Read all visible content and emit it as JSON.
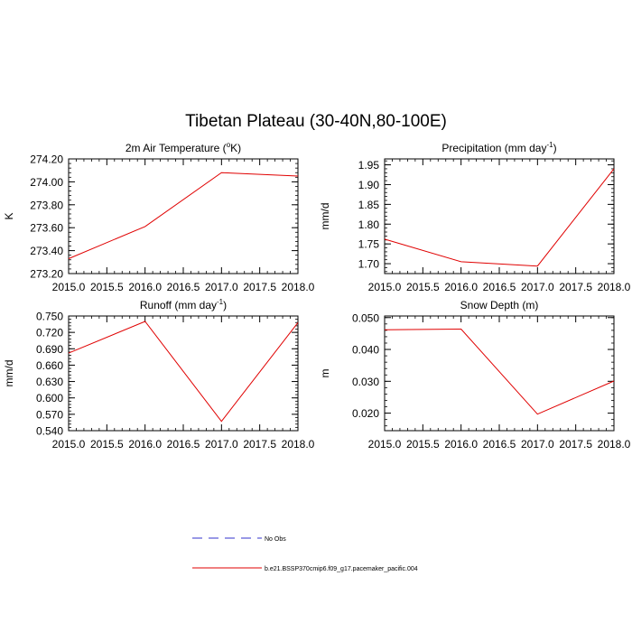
{
  "title": "Tibetan Plateau (30-40N,80-100E)",
  "series_color": "#e00000",
  "obs_color": "#3333cc",
  "legend": {
    "obs_label": "No Obs",
    "model_label": "b.e21.BSSP370cmip6.f09_g17.pacemaker_pacific.004"
  },
  "chart_data": [
    {
      "type": "line",
      "title": "2m Air Temperature (",
      "title_sup": "o",
      "title_tail": "K)",
      "ylabel": "K",
      "x": [
        2015.0,
        2016.0,
        2017.0,
        2018.0
      ],
      "values": [
        273.33,
        273.61,
        274.08,
        274.05
      ],
      "xlim": [
        2015.0,
        2018.0
      ],
      "ylim": [
        273.2,
        274.2
      ],
      "yticks": [
        "274.20",
        "274.00",
        "273.80",
        "273.60",
        "273.40",
        "273.20"
      ],
      "ytick_values": [
        274.2,
        274.0,
        273.8,
        273.6,
        273.4,
        273.2
      ],
      "xticks": [
        "2015.0",
        "2015.5",
        "2016.0",
        "2016.5",
        "2017.0",
        "2017.5",
        "2018.0"
      ]
    },
    {
      "type": "line",
      "title": "Precipitation (mm day",
      "title_sup": "-1",
      "title_tail": ")",
      "ylabel": "mm/d",
      "x": [
        2015.0,
        2016.0,
        2017.0,
        2018.0
      ],
      "values": [
        1.762,
        1.705,
        1.694,
        1.94
      ],
      "xlim": [
        2015.0,
        2018.0
      ],
      "ylim": [
        1.675,
        1.965
      ],
      "yticks": [
        "1.95",
        "1.90",
        "1.85",
        "1.80",
        "1.75",
        "1.70"
      ],
      "ytick_values": [
        1.95,
        1.9,
        1.85,
        1.8,
        1.75,
        1.7
      ],
      "xticks": [
        "2015.0",
        "2015.5",
        "2016.0",
        "2016.5",
        "2017.0",
        "2017.5",
        "2018.0"
      ]
    },
    {
      "type": "line",
      "title": "Runoff (mm day",
      "title_sup": "-1",
      "title_tail": ")",
      "ylabel": "mm/d",
      "x": [
        2015.0,
        2016.0,
        2017.0,
        2018.0
      ],
      "values": [
        0.682,
        0.74,
        0.557,
        0.738
      ],
      "xlim": [
        2015.0,
        2018.0
      ],
      "ylim": [
        0.54,
        0.75
      ],
      "yticks": [
        "0.750",
        "0.720",
        "0.690",
        "0.660",
        "0.630",
        "0.600",
        "0.570",
        "0.540"
      ],
      "ytick_values": [
        0.75,
        0.72,
        0.69,
        0.66,
        0.63,
        0.6,
        0.57,
        0.54
      ],
      "xticks": [
        "2015.0",
        "2015.5",
        "2016.0",
        "2016.5",
        "2017.0",
        "2017.5",
        "2018.0"
      ]
    },
    {
      "type": "line",
      "title": "Snow Depth (m)",
      "title_sup": "",
      "title_tail": "",
      "ylabel": "m",
      "x": [
        2015.0,
        2016.0,
        2017.0,
        2018.0
      ],
      "values": [
        0.0462,
        0.0464,
        0.0197,
        0.0301
      ],
      "xlim": [
        2015.0,
        2018.0
      ],
      "ylim": [
        0.0145,
        0.0505
      ],
      "yticks": [
        "0.050",
        "0.040",
        "0.030",
        "0.020"
      ],
      "ytick_values": [
        0.05,
        0.04,
        0.03,
        0.02
      ],
      "xticks": [
        "2015.0",
        "2015.5",
        "2016.0",
        "2016.5",
        "2017.0",
        "2017.5",
        "2018.0"
      ]
    }
  ]
}
